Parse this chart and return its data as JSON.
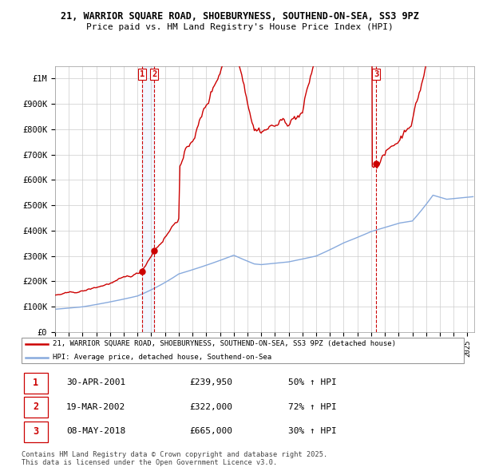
{
  "title1": "21, WARRIOR SQUARE ROAD, SHOEBURYNESS, SOUTHEND-ON-SEA, SS3 9PZ",
  "title2": "Price paid vs. HM Land Registry's House Price Index (HPI)",
  "xlim_start": 1995.0,
  "xlim_end": 2025.5,
  "ylim": [
    0,
    1050000
  ],
  "yticks": [
    0,
    100000,
    200000,
    300000,
    400000,
    500000,
    600000,
    700000,
    800000,
    900000,
    1000000
  ],
  "ytick_labels": [
    "£0",
    "£100K",
    "£200K",
    "£300K",
    "£400K",
    "£500K",
    "£600K",
    "£700K",
    "£800K",
    "£900K",
    "£1M"
  ],
  "sale_dates": [
    2001.33,
    2002.21,
    2018.36
  ],
  "sale_prices": [
    239950,
    322000,
    665000
  ],
  "sale_labels": [
    "1",
    "2",
    "3"
  ],
  "legend_line1": "21, WARRIOR SQUARE ROAD, SHOEBURYNESS, SOUTHEND-ON-SEA, SS3 9PZ (detached house)",
  "legend_line2": "HPI: Average price, detached house, Southend-on-Sea",
  "table_rows": [
    [
      "1",
      "30-APR-2001",
      "£239,950",
      "50% ↑ HPI"
    ],
    [
      "2",
      "19-MAR-2002",
      "£322,000",
      "72% ↑ HPI"
    ],
    [
      "3",
      "08-MAY-2018",
      "£665,000",
      "30% ↑ HPI"
    ]
  ],
  "footnote": "Contains HM Land Registry data © Crown copyright and database right 2025.\nThis data is licensed under the Open Government Licence v3.0.",
  "line_color_price": "#cc0000",
  "line_color_hpi": "#88aadd",
  "vline_color": "#cc0000",
  "shade_color": "#ddeeff",
  "bg_color": "#ffffff",
  "grid_color": "#cccccc"
}
